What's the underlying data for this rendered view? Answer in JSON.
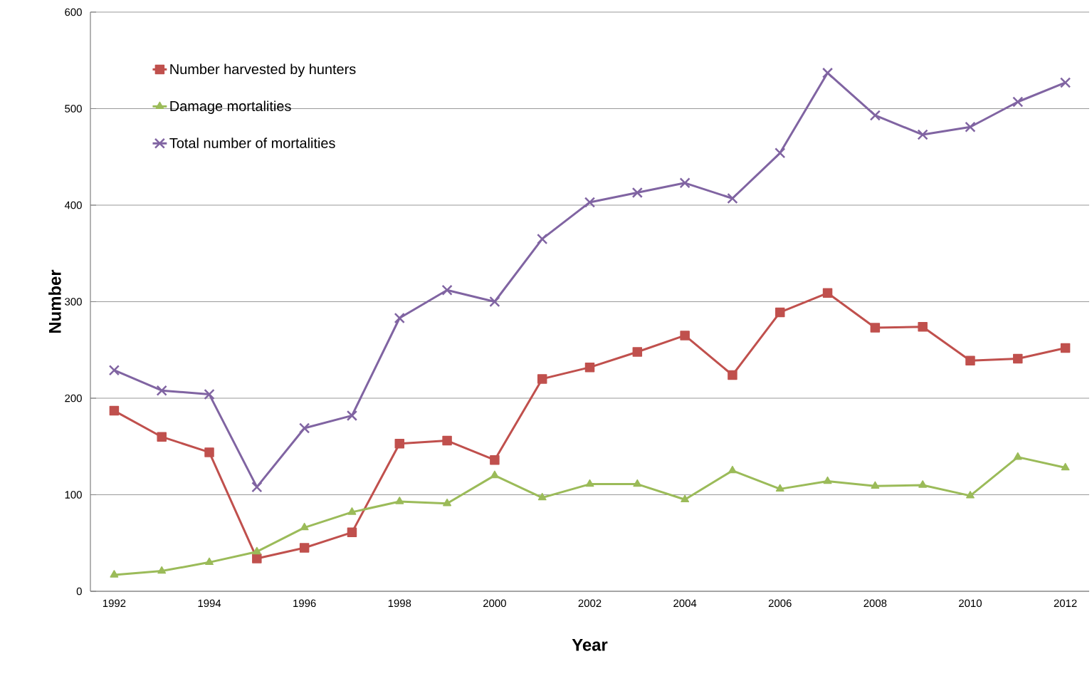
{
  "chart_data": {
    "type": "line",
    "xlabel": "Year",
    "ylabel": "Number",
    "categories": [
      "1992",
      null,
      "1994",
      null,
      "1996",
      null,
      "1998",
      null,
      "2000",
      null,
      "2002",
      null,
      "2004",
      null,
      "2006",
      null,
      "2008",
      null,
      "2010",
      null,
      "2012"
    ],
    "series": [
      {
        "name": "Number harvested by hunters",
        "color": "#c0504d",
        "marker": "square",
        "values": [
          187,
          160,
          144,
          34,
          45,
          61,
          153,
          156,
          136,
          220,
          232,
          248,
          265,
          224,
          289,
          309,
          273,
          274,
          239,
          241,
          252
        ]
      },
      {
        "name": "Damage mortalities",
        "color": "#9bbb59",
        "marker": "triangle",
        "values": [
          17,
          21,
          30,
          41,
          66,
          82,
          93,
          91,
          120,
          97,
          111,
          111,
          95,
          125,
          106,
          114,
          109,
          110,
          99,
          139,
          128
        ]
      },
      {
        "name": "Total number of mortalities",
        "color": "#8064a2",
        "marker": "cross",
        "values": [
          229,
          208,
          204,
          108,
          169,
          182,
          283,
          312,
          300,
          365,
          403,
          413,
          423,
          407,
          454,
          537,
          493,
          473,
          481,
          507,
          527
        ]
      }
    ],
    "ylim": [
      0,
      600
    ],
    "yticks": [
      0,
      100,
      200,
      300,
      400,
      500,
      600
    ],
    "grid": "y",
    "legend": "top left",
    "line_style": "solid"
  }
}
